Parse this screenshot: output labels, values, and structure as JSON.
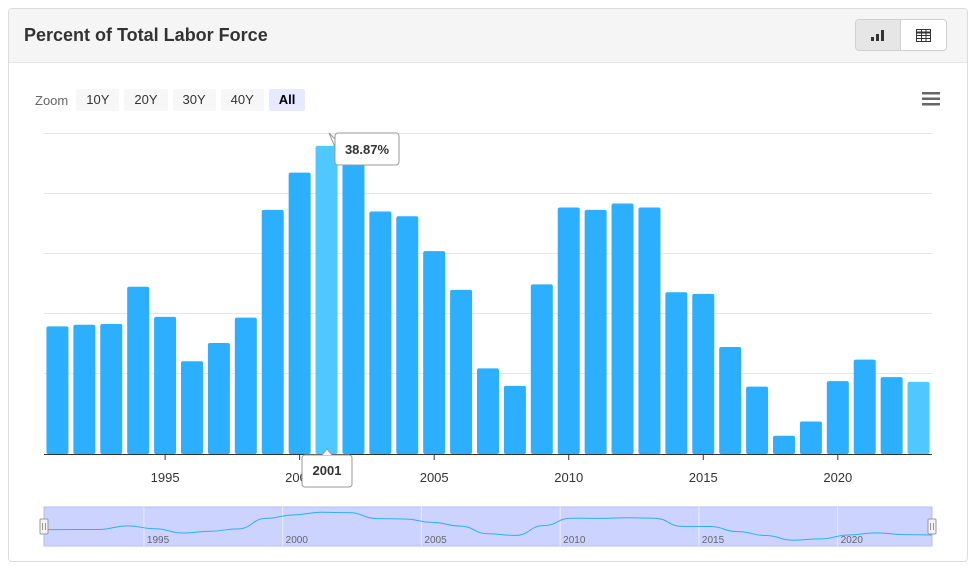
{
  "header": {
    "title": "Percent of Total Labor Force"
  },
  "view_toggle": {
    "chart_icon": "bar-chart-icon",
    "table_icon": "table-icon",
    "active": "chart"
  },
  "zoom": {
    "label": "Zoom",
    "buttons": [
      "10Y",
      "20Y",
      "30Y",
      "40Y",
      "All"
    ],
    "active": "All"
  },
  "menu_icon": "hamburger-menu-icon",
  "colors": {
    "bar": "#2caffe",
    "bar_highlight": "#4fc8ff",
    "grid": "#e6e6e6",
    "navigator_fill": "#ccd3ff",
    "navigator_line": "#2caffe"
  },
  "tooltip": {
    "value": "38.87%",
    "category": "2001"
  },
  "chart_data": {
    "type": "bar",
    "title": "",
    "xlabel": "",
    "ylabel": "",
    "categories": [
      "1991",
      "1992",
      "1993",
      "1994",
      "1995",
      "1996",
      "1997",
      "1998",
      "1999",
      "2000",
      "2001",
      "2002",
      "2003",
      "2004",
      "2005",
      "2006",
      "2007",
      "2008",
      "2009",
      "2010",
      "2011",
      "2012",
      "2013",
      "2014",
      "2015",
      "2016",
      "2017",
      "2018",
      "2019",
      "2020",
      "2021",
      "2022",
      "2023"
    ],
    "values": [
      16.1,
      16.3,
      16.4,
      21.1,
      17.3,
      11.7,
      14.0,
      17.2,
      30.8,
      35.5,
      38.87,
      38.3,
      30.6,
      30.0,
      25.6,
      20.7,
      10.8,
      8.6,
      21.4,
      31.1,
      30.8,
      31.6,
      31.1,
      20.4,
      20.2,
      13.5,
      8.5,
      2.3,
      4.1,
      9.2,
      11.9,
      9.7,
      9.1
    ],
    "ylim": [
      0,
      40.5
    ],
    "x_ticks": [
      "1995",
      "2000",
      "2005",
      "2010",
      "2015",
      "2020"
    ],
    "grid": true,
    "highlighted_category": "2001",
    "navigator_ticks": [
      "1995",
      "2000",
      "2005",
      "2010",
      "2015",
      "2020"
    ]
  }
}
